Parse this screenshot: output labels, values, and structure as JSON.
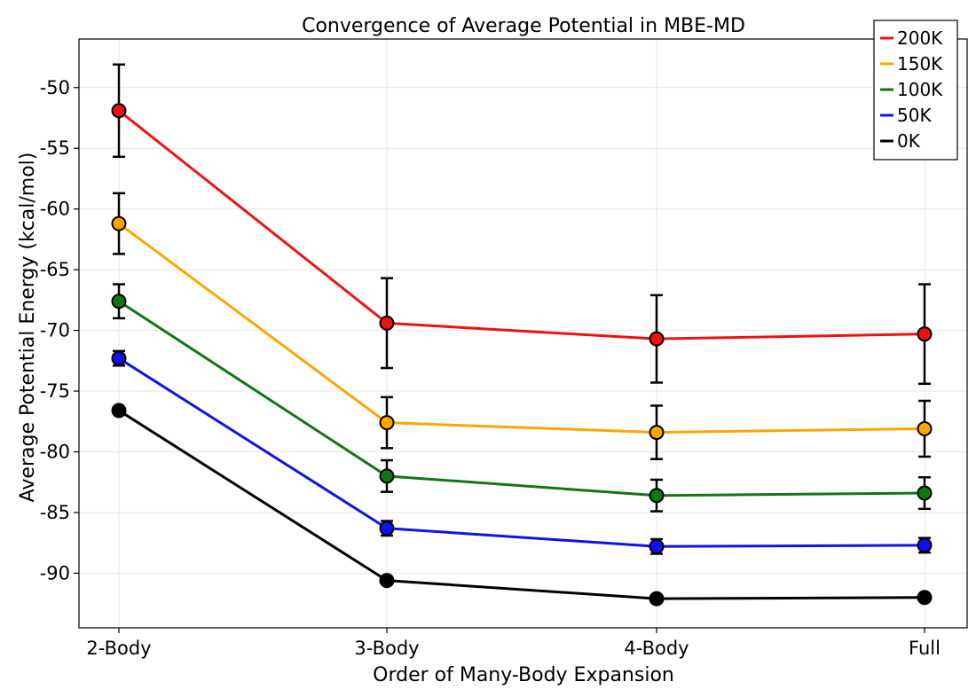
{
  "chart_data": {
    "type": "line",
    "title": "Convergence of Average Potential in MBE-MD",
    "xlabel": "Order of Many-Body Expansion",
    "ylabel": "Average Potential Energy (kcal/mol)",
    "categories": [
      "2-Body",
      "3-Body",
      "4-Body",
      "Full"
    ],
    "ylim": [
      -94.5,
      -46.0
    ],
    "yticks": [
      -90,
      -85,
      -80,
      -75,
      -70,
      -65,
      -60,
      -55,
      -50
    ],
    "grid": true,
    "legend_position": "top-right",
    "series": [
      {
        "name": "200K",
        "color": "#ee1111",
        "values": [
          -51.9,
          -69.4,
          -70.7,
          -70.3
        ],
        "errors": [
          3.8,
          3.7,
          3.6,
          4.1
        ]
      },
      {
        "name": "150K",
        "color": "#ffa500",
        "values": [
          -61.2,
          -77.6,
          -78.4,
          -78.1
        ],
        "errors": [
          2.5,
          2.1,
          2.2,
          2.3
        ]
      },
      {
        "name": "100K",
        "color": "#117711",
        "values": [
          -67.6,
          -82.0,
          -83.6,
          -83.4
        ],
        "errors": [
          1.4,
          1.3,
          1.3,
          1.3
        ]
      },
      {
        "name": "50K",
        "color": "#1111ee",
        "values": [
          -72.3,
          -86.3,
          -87.8,
          -87.7
        ],
        "errors": [
          0.6,
          0.6,
          0.6,
          0.6
        ]
      },
      {
        "name": "0K",
        "color": "#000000",
        "values": [
          -76.6,
          -90.6,
          -92.1,
          -92.0
        ],
        "errors": [
          0,
          0,
          0,
          0
        ]
      }
    ]
  }
}
